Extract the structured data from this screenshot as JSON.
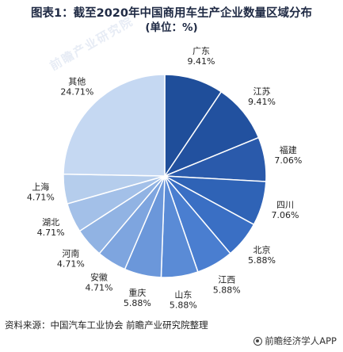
{
  "title": {
    "line1": "图表1：截至2020年中国商用车生产企业数量区域分布",
    "line2": "(单位：%)"
  },
  "chart_data": {
    "type": "pie",
    "title": "图表1：截至2020年中国商用车生产企业数量区域分布",
    "subtitle": "(单位：%)",
    "unit": "%",
    "categories": [
      "广东",
      "江苏",
      "福建",
      "四川",
      "北京",
      "江西",
      "山东",
      "重庆",
      "安徽",
      "河南",
      "湖北",
      "上海",
      "其他"
    ],
    "values": [
      9.41,
      9.41,
      7.06,
      7.06,
      5.88,
      5.88,
      5.88,
      5.88,
      4.71,
      4.71,
      4.71,
      4.71,
      24.71
    ],
    "value_labels": [
      "9.41%",
      "9.41%",
      "7.06%",
      "7.06%",
      "5.88%",
      "5.88%",
      "5.88%",
      "5.88%",
      "4.71%",
      "4.71%",
      "4.71%",
      "4.71%",
      "24.71%"
    ],
    "colors": [
      "#1f4e9a",
      "#22519f",
      "#2a5aab",
      "#2f63b6",
      "#3a6fc4",
      "#4a7ed0",
      "#5a8bd6",
      "#6b97da",
      "#7ea5df",
      "#91b3e3",
      "#a3c0e8",
      "#b5cdec",
      "#c5d8f2"
    ],
    "start_angle_deg": 0,
    "direction": "clockwise",
    "legend": "none"
  },
  "source": "资料来源：中国汽车工业协会 前瞻产业研究院整理",
  "brand": "前瞻经济学人APP",
  "watermark": "前瞻产业研究院"
}
